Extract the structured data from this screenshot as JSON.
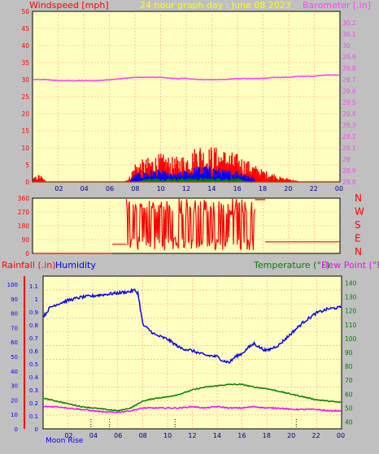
{
  "header": {
    "wind_label": "Windspeed [mph]",
    "title": "24 hour graph day : June 08 2023",
    "baro_label": "Barometer [.in]",
    "rain_label": "Rainfall (.in)",
    "humidity_label": "Humidity",
    "temp_label": "Temperature (°F)",
    "dew_label": "Dew Point (°F)",
    "moon_label": "Moon Rise",
    "dir_letters": [
      "N",
      "W",
      "S",
      "E",
      "N"
    ]
  },
  "colors": {
    "background": "#c0c0c0",
    "plot_bg": "#ffffc0",
    "grid": "#ff9999",
    "axis_red": "#ff0000",
    "title_yellow": "#ffff00",
    "baro": "#ff40ff",
    "humidity": "#0000ff",
    "temperature": "#008000",
    "dewpoint": "#ff00ff",
    "wind_gust": "#ff0000",
    "wind_avg": "#0000ff",
    "wind_low": "#008000"
  },
  "chart_data": [
    {
      "type": "line",
      "id": "wind",
      "xlabel": "",
      "x_ticks": [
        "02",
        "04",
        "06",
        "08",
        "10",
        "12",
        "14",
        "16",
        "18",
        "20",
        "22",
        "00"
      ],
      "x_range_hours": [
        0,
        24
      ],
      "y_left": {
        "label": "Windspeed [mph]",
        "range": [
          0,
          50
        ],
        "ticks": [
          "0",
          "5",
          "10",
          "15",
          "20",
          "25",
          "30",
          "35",
          "40",
          "45",
          "50"
        ]
      },
      "y_right": {
        "label": "Barometer [.in]",
        "range": [
          28.8,
          30.3
        ],
        "ticks": [
          "28.8",
          "28.9",
          "29",
          "29.1",
          "29.2",
          "29.3",
          "29.4",
          "29.5",
          "29.6",
          "29.7",
          "29.8",
          "29.9",
          "30",
          "30.1",
          "30.2"
        ]
      },
      "series": [
        {
          "name": "Barometer",
          "axis": "right",
          "x": [
            0,
            1,
            2,
            3,
            4,
            5,
            6,
            7,
            8,
            9,
            10,
            11,
            12,
            13,
            14,
            15,
            16,
            17,
            18,
            19,
            20,
            21,
            22,
            23,
            24
          ],
          "y": [
            29.7,
            29.7,
            29.69,
            29.69,
            29.69,
            29.69,
            29.7,
            29.71,
            29.72,
            29.72,
            29.72,
            29.71,
            29.71,
            29.7,
            29.7,
            29.7,
            29.71,
            29.71,
            29.71,
            29.72,
            29.72,
            29.73,
            29.73,
            29.74,
            29.74
          ]
        },
        {
          "name": "Wind gust",
          "axis": "left",
          "style": "spiky",
          "x": [
            0,
            0.5,
            1,
            2,
            3,
            4,
            5,
            6,
            7,
            7.5,
            8,
            9,
            10,
            11,
            12,
            12.5,
            13,
            13.5,
            14,
            15,
            16,
            16.5,
            17,
            17.5,
            18,
            19,
            19.5,
            20,
            21,
            22,
            23,
            24
          ],
          "y": [
            1,
            2,
            0,
            0,
            0,
            0,
            0,
            0,
            0,
            1,
            5,
            6,
            7,
            6,
            7,
            8,
            10,
            8,
            9,
            8,
            7,
            6,
            5,
            4,
            3,
            2,
            1,
            1,
            0,
            0,
            0,
            0
          ]
        },
        {
          "name": "Wind average",
          "axis": "left",
          "style": "spiky",
          "x": [
            0,
            7.5,
            8,
            9,
            10,
            11,
            12,
            13,
            14,
            15,
            16,
            17,
            17.5,
            24
          ],
          "y": [
            0,
            0,
            2,
            3,
            3,
            2,
            3,
            4,
            4,
            3,
            3,
            2,
            0,
            0
          ]
        },
        {
          "name": "Wind low",
          "axis": "left",
          "style": "spiky",
          "x": [
            0,
            8,
            9,
            10,
            11,
            12,
            13,
            14,
            15,
            16,
            17,
            24
          ],
          "y": [
            0,
            0,
            1,
            1,
            1,
            1,
            1,
            1,
            1,
            1,
            0,
            0
          ]
        }
      ]
    },
    {
      "type": "line",
      "id": "direction",
      "y": {
        "range": [
          0,
          360
        ],
        "ticks": [
          "0",
          "90",
          "180",
          "270",
          "360"
        ]
      },
      "series": [
        {
          "name": "Wind direction",
          "style": "scatter-line",
          "segments": [
            {
              "x": [
                0,
                6.2
              ],
              "y": [
                0,
                0
              ]
            },
            {
              "x": [
                6.2,
                7.3
              ],
              "y": [
                60,
                60
              ]
            },
            {
              "x": [
                7.3,
                17.4
              ],
              "y": "erratic 0-360"
            },
            {
              "x": [
                17.4,
                18.2
              ],
              "y": [
                350,
                350
              ]
            },
            {
              "x": [
                18.2,
                24
              ],
              "y": [
                75,
                75
              ]
            }
          ]
        }
      ]
    },
    {
      "type": "line",
      "id": "temp_humidity",
      "x_ticks": [
        "02",
        "04",
        "06",
        "08",
        "10",
        "12",
        "14",
        "16",
        "18",
        "20",
        "22",
        "00"
      ],
      "y_left_outer": {
        "label": "Humidity",
        "range": [
          0,
          100
        ],
        "ticks": [
          "0",
          "10",
          "20",
          "30",
          "40",
          "50",
          "60",
          "70",
          "80",
          "90",
          "100"
        ]
      },
      "y_left_inner": {
        "label": "Rainfall (.in)",
        "range": [
          0,
          1.2
        ],
        "ticks": [
          "0",
          "0.1",
          "0.2",
          "0.3",
          "0.4",
          "0.5",
          "0.6",
          "0.7",
          "0.8",
          "0.9",
          "1",
          "1.1"
        ]
      },
      "y_right": {
        "label": "Temperature (°F)",
        "range": [
          35,
          145
        ],
        "ticks": [
          "40",
          "50",
          "60",
          "70",
          "80",
          "90",
          "100",
          "110",
          "120",
          "130",
          "140"
        ]
      },
      "series": [
        {
          "name": "Humidity",
          "axis": "left",
          "x": [
            0,
            0.5,
            1,
            2,
            3,
            4,
            5,
            6,
            7,
            7.3,
            7.6,
            8,
            9,
            10,
            11,
            12,
            13,
            14,
            14.5,
            15,
            15.5,
            16,
            16.5,
            17,
            17.5,
            18,
            19,
            20,
            21,
            22,
            23,
            24
          ],
          "y": [
            78,
            84,
            86,
            89,
            91,
            92,
            93,
            94,
            95,
            96,
            94,
            72,
            65,
            62,
            56,
            54,
            51,
            50,
            47,
            46,
            50,
            52,
            56,
            59,
            56,
            54,
            58,
            66,
            74,
            80,
            83,
            84
          ]
        },
        {
          "name": "Temperature",
          "axis": "right",
          "x": [
            0,
            1,
            2,
            3,
            4,
            5,
            6,
            7,
            8,
            9,
            10,
            11,
            12,
            13,
            14,
            15,
            16,
            17,
            18,
            19,
            20,
            21,
            22,
            23,
            24
          ],
          "y": [
            57,
            55,
            53,
            51,
            50,
            49,
            48,
            50,
            55,
            57,
            58,
            60,
            63,
            65,
            66,
            67,
            67,
            65,
            64,
            62,
            60,
            58,
            56,
            55,
            54
          ]
        },
        {
          "name": "Dew Point",
          "axis": "right",
          "x": [
            0,
            1,
            2,
            3,
            4,
            5,
            6,
            7,
            8,
            9,
            10,
            11,
            12,
            13,
            14,
            15,
            16,
            17,
            18,
            19,
            20,
            21,
            22,
            23,
            24
          ],
          "y": [
            51,
            51,
            50,
            49,
            48,
            47,
            47,
            48,
            50,
            50,
            50,
            50,
            51,
            50,
            51,
            50,
            50,
            51,
            50,
            50,
            49,
            49,
            49,
            48,
            48
          ]
        }
      ],
      "moon_markers_hours": [
        3.8,
        5.3,
        10.6,
        20.4
      ]
    }
  ]
}
